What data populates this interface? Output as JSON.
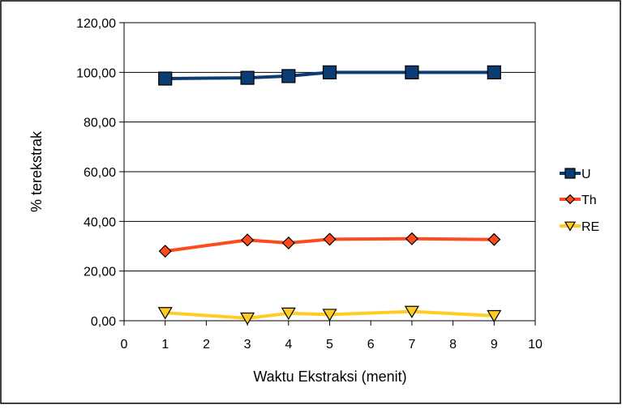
{
  "chart_data": {
    "type": "line",
    "title": "",
    "xlabel": "Waktu Ekstraksi (menit)",
    "ylabel": "% terekstrak",
    "xlim": [
      0,
      10
    ],
    "ylim": [
      0,
      120
    ],
    "x_ticks": [
      "0",
      "1",
      "2",
      "3",
      "4",
      "5",
      "6",
      "7",
      "8",
      "9",
      "10"
    ],
    "y_ticks": [
      "0,00",
      "20,00",
      "40,00",
      "60,00",
      "80,00",
      "100,00",
      "120,00"
    ],
    "grid": "horizontal",
    "legend_position": "right",
    "series": [
      {
        "name": "U",
        "color": "#0b3c73",
        "marker": "square",
        "x": [
          1,
          3,
          4,
          5,
          7,
          9
        ],
        "y": [
          97.5,
          97.8,
          98.5,
          100.0,
          100.0,
          100.0
        ]
      },
      {
        "name": "Th",
        "color": "#ff4a1c",
        "marker": "diamond",
        "x": [
          1,
          3,
          4,
          5,
          7,
          9
        ],
        "y": [
          28.0,
          32.5,
          31.3,
          32.8,
          33.0,
          32.7
        ]
      },
      {
        "name": "RE",
        "color": "#ffcc22",
        "marker": "triangle-down",
        "x": [
          1,
          3,
          4,
          5,
          7,
          9
        ],
        "y": [
          3.2,
          1.0,
          3.0,
          2.5,
          3.7,
          2.0
        ]
      }
    ]
  }
}
